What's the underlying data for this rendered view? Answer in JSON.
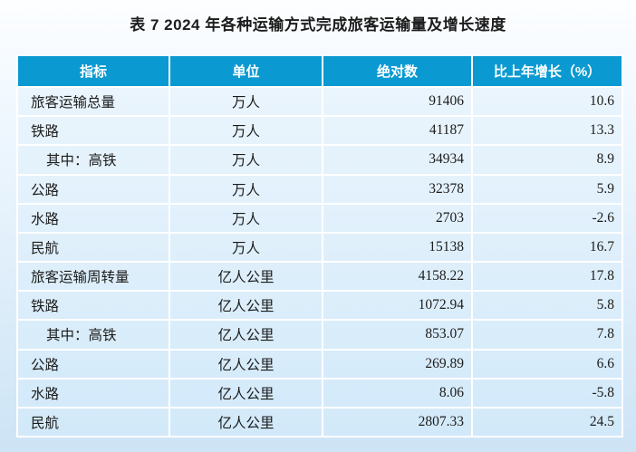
{
  "colors": {
    "header_bg": "#0a9ad1",
    "header_text": "#ffffff",
    "page_top": "#fdfeff",
    "page_bottom": "#cde4f5",
    "body_top": "#eaf5fd",
    "body_bottom": "#d2e9f9",
    "border": "#ffffff",
    "text": "#1c1c1c"
  },
  "title": "表 7 2024 年各种运输方式完成旅客运输量及增长速度",
  "chart_data": {
    "type": "table",
    "title": "表 7 2024 年各种运输方式完成旅客运输量及增长速度",
    "columns": [
      "指标",
      "单位",
      "绝对数",
      "比上年增长（%）"
    ],
    "rows": [
      {
        "indicator": "旅客运输总量",
        "unit": "万人",
        "value": 91406,
        "growth": 10.6
      },
      {
        "indicator": "铁路",
        "unit": "万人",
        "value": 41187,
        "growth": 13.3
      },
      {
        "indicator": "其中：高铁",
        "unit": "万人",
        "value": 34934,
        "growth": 8.9
      },
      {
        "indicator": "公路",
        "unit": "万人",
        "value": 32378,
        "growth": 5.9
      },
      {
        "indicator": "水路",
        "unit": "万人",
        "value": 2703,
        "growth": -2.6
      },
      {
        "indicator": "民航",
        "unit": "万人",
        "value": 15138,
        "growth": 16.7
      },
      {
        "indicator": "旅客运输周转量",
        "unit": "亿人公里",
        "value": 4158.22,
        "growth": 17.8
      },
      {
        "indicator": "铁路",
        "unit": "亿人公里",
        "value": 1072.94,
        "growth": 5.8
      },
      {
        "indicator": "其中：高铁",
        "unit": "亿人公里",
        "value": 853.07,
        "growth": 7.8
      },
      {
        "indicator": "公路",
        "unit": "亿人公里",
        "value": 269.89,
        "growth": 6.6
      },
      {
        "indicator": "水路",
        "unit": "亿人公里",
        "value": 8.06,
        "growth": -5.8
      },
      {
        "indicator": "民航",
        "unit": "亿人公里",
        "value": 2807.33,
        "growth": 24.5
      }
    ]
  }
}
